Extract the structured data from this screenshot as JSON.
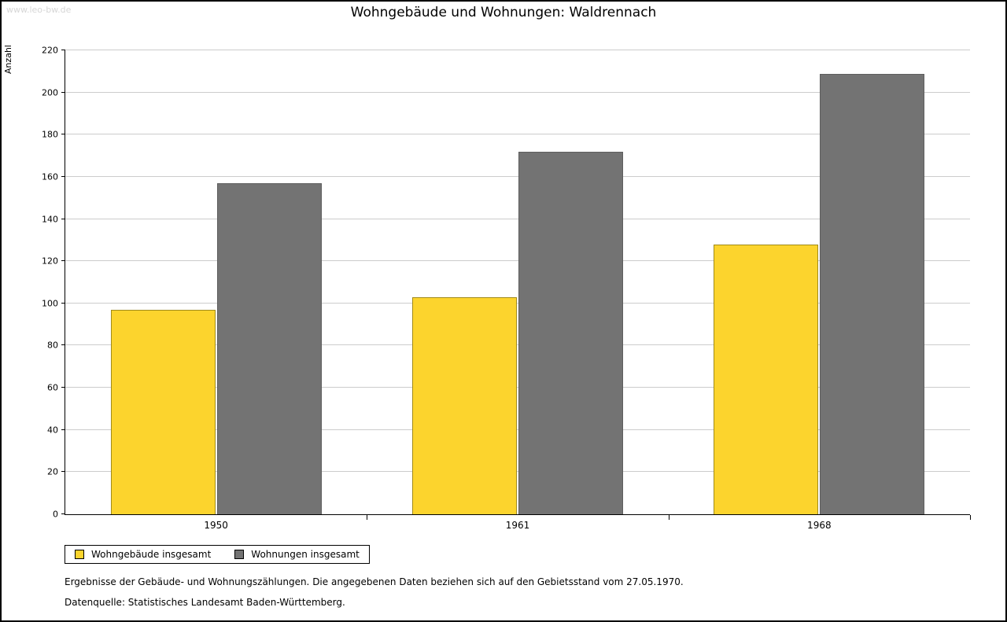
{
  "watermark": "www.leo-bw.de",
  "chart_data": {
    "type": "bar",
    "title": "Wohngebäude und Wohnungen: Waldrennach",
    "ylabel": "Anzahl",
    "xlabel": "",
    "categories": [
      "1950",
      "1961",
      "1968"
    ],
    "series": [
      {
        "name": "Wohngebäude insgesamt",
        "color": "#fcd42d",
        "values": [
          97,
          103,
          128
        ]
      },
      {
        "name": "Wohnungen insgesamt",
        "color": "#737373",
        "values": [
          157,
          172,
          209
        ]
      }
    ],
    "ylim": [
      0,
      220
    ],
    "ytick_step": 20,
    "grid": true,
    "legend_position": "bottom-left"
  },
  "footnotes": [
    "Ergebnisse der Gebäude- und Wohnungszählungen. Die angegebenen Daten beziehen sich auf den Gebietsstand vom 27.05.1970.",
    "Datenquelle: Statistisches Landesamt Baden-Württemberg."
  ]
}
